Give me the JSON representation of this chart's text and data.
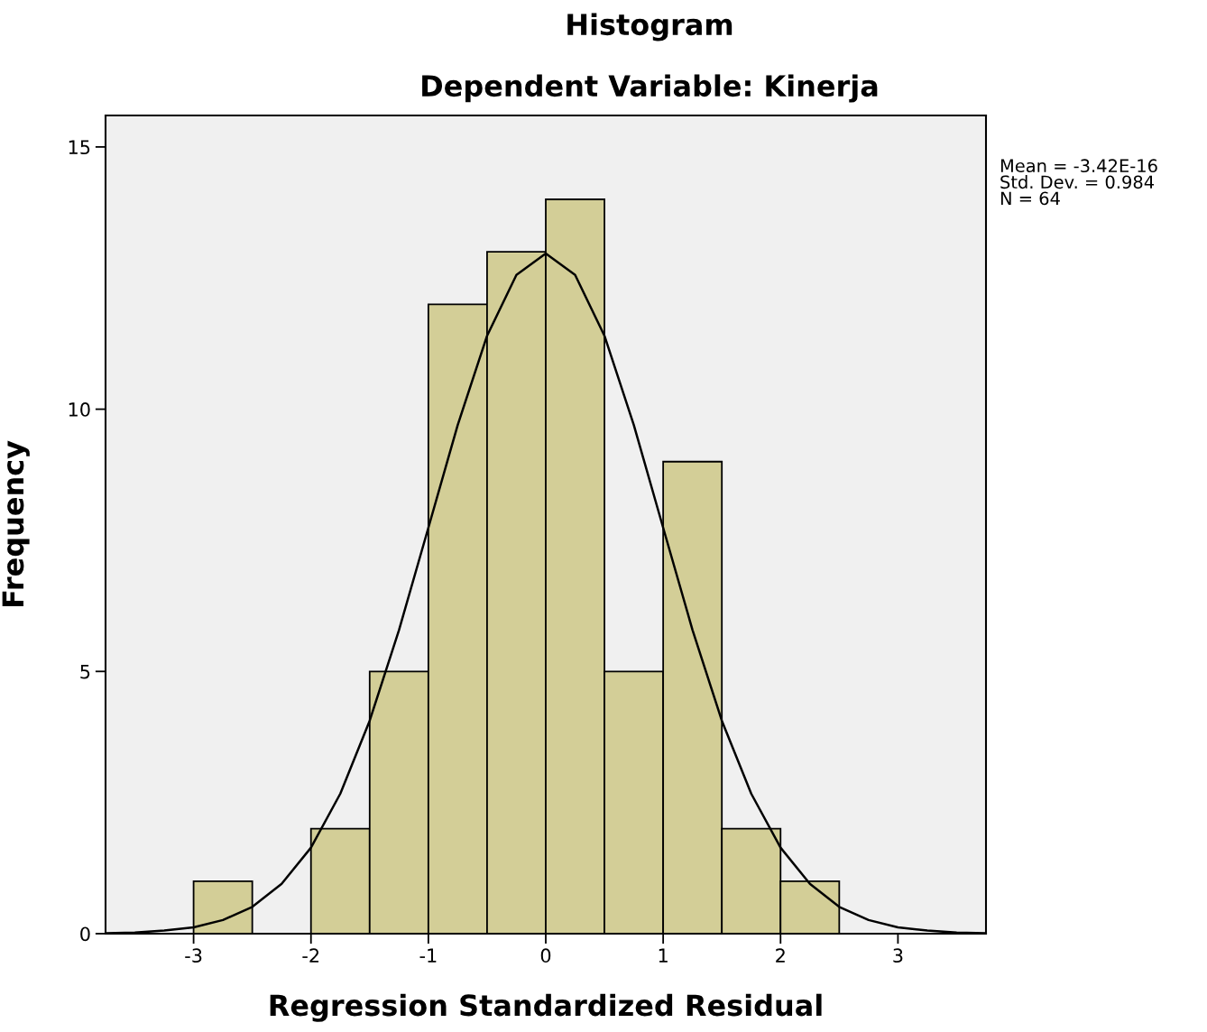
{
  "chart_data": {
    "type": "histogram",
    "title": "Histogram",
    "subtitle": "Dependent Variable: Kinerja",
    "xlabel": "Regression Standardized Residual",
    "ylabel": "Frequency",
    "bins": [
      -3,
      -2.5,
      -2,
      -1.5,
      -1,
      -0.5,
      0,
      0.5,
      1,
      1.5,
      2,
      2.5
    ],
    "values": [
      1,
      0,
      2,
      5,
      12,
      13,
      14,
      5,
      9,
      2,
      1
    ],
    "color": "#d3ce97",
    "series": [
      {
        "type": "line",
        "color": "#000000",
        "x": [
          -3.75,
          -3.5,
          -3.25,
          -3,
          -2.75,
          -2.5,
          -2.25,
          -2,
          -1.75,
          -1.5,
          -1.25,
          -1,
          -0.75,
          -0.5,
          -0.25,
          0,
          0.25,
          0.5,
          0.75,
          1,
          1.25,
          1.5,
          1.75,
          2,
          2.25,
          2.5,
          2.75,
          3,
          3.25,
          3.5,
          3.75
        ],
        "values": [
          0.01,
          0.02,
          0.06,
          0.12,
          0.26,
          0.51,
          0.95,
          1.64,
          2.67,
          4.06,
          5.79,
          7.74,
          9.7,
          11.4,
          12.56,
          12.97,
          12.56,
          11.4,
          9.7,
          7.74,
          5.79,
          4.06,
          2.67,
          1.64,
          0.95,
          0.51,
          0.26,
          0.12,
          0.06,
          0.02,
          0.01
        ]
      }
    ],
    "annotations": [
      "Mean = -3.42E-16\nStd. Dev. = 0.984\nN = 64"
    ],
    "xlim": [
      -3.75,
      3.75
    ],
    "ylim": [
      0,
      15.6
    ],
    "xticks": [
      -3,
      -2,
      -1,
      0,
      1,
      2,
      3
    ],
    "yticks": [
      0,
      5,
      10,
      15
    ],
    "grid": false,
    "legend": false
  }
}
